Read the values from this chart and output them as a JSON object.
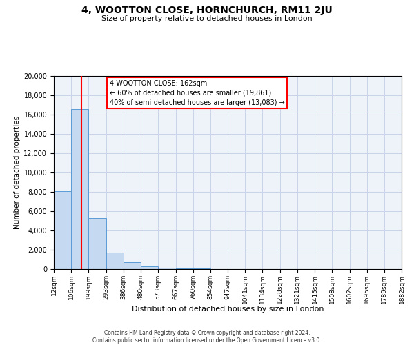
{
  "title": "4, WOOTTON CLOSE, HORNCHURCH, RM11 2JU",
  "subtitle": "Size of property relative to detached houses in London",
  "xlabel": "Distribution of detached houses by size in London",
  "ylabel": "Number of detached properties",
  "bar_color": "#c5d9f0",
  "bar_edge_color": "#5b9bd5",
  "grid_color": "#c8d4e8",
  "background_color": "#eef2f9",
  "vline_x": 162,
  "vline_color": "red",
  "bin_edges": [
    12,
    106,
    199,
    293,
    386,
    480,
    573,
    667,
    760,
    854,
    947,
    1041,
    1134,
    1228,
    1321,
    1415,
    1508,
    1602,
    1695,
    1789,
    1882
  ],
  "bin_heights": [
    8100,
    16600,
    5300,
    1750,
    750,
    300,
    175,
    100,
    50,
    30,
    15,
    10,
    8,
    5,
    3,
    2,
    1,
    1,
    1,
    1
  ],
  "annotation_title": "4 WOOTTON CLOSE: 162sqm",
  "annotation_line1": "← 60% of detached houses are smaller (19,861)",
  "annotation_line2": "40% of semi-detached houses are larger (13,083) →",
  "annotation_box_color": "white",
  "annotation_box_edge_color": "red",
  "ylim": [
    0,
    20000
  ],
  "yticks": [
    0,
    2000,
    4000,
    6000,
    8000,
    10000,
    12000,
    14000,
    16000,
    18000,
    20000
  ],
  "xtick_labels": [
    "12sqm",
    "106sqm",
    "199sqm",
    "293sqm",
    "386sqm",
    "480sqm",
    "573sqm",
    "667sqm",
    "760sqm",
    "854sqm",
    "947sqm",
    "1041sqm",
    "1134sqm",
    "1228sqm",
    "1321sqm",
    "1415sqm",
    "1508sqm",
    "1602sqm",
    "1695sqm",
    "1789sqm",
    "1882sqm"
  ],
  "footer_line1": "Contains HM Land Registry data © Crown copyright and database right 2024.",
  "footer_line2": "Contains public sector information licensed under the Open Government Licence v3.0."
}
